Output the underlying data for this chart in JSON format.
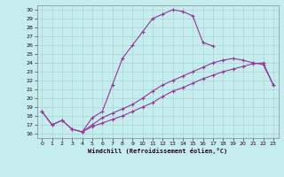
{
  "xlabel": "Windchill (Refroidissement éolien,°C)",
  "xlim": [
    -0.5,
    23.5
  ],
  "ylim": [
    15.5,
    30.5
  ],
  "xticks": [
    0,
    1,
    2,
    3,
    4,
    5,
    6,
    7,
    8,
    9,
    10,
    11,
    12,
    13,
    14,
    15,
    16,
    17,
    18,
    19,
    20,
    21,
    22,
    23
  ],
  "yticks": [
    16,
    17,
    18,
    19,
    20,
    21,
    22,
    23,
    24,
    25,
    26,
    27,
    28,
    29,
    30
  ],
  "bg_color": "#c6eded",
  "line_color": "#993399",
  "grid_color": "#aad4d4",
  "line1_x": [
    0,
    1,
    2,
    3,
    4,
    5,
    6,
    7,
    8,
    9,
    10,
    11,
    12,
    13,
    14,
    15,
    16,
    17
  ],
  "line1_y": [
    18.5,
    17.0,
    17.5,
    16.5,
    16.2,
    17.8,
    18.5,
    21.5,
    24.5,
    26.0,
    27.5,
    29.0,
    29.5,
    30.0,
    29.8,
    29.3,
    26.3,
    25.9
  ],
  "line2_x": [
    0,
    1,
    2,
    3,
    4,
    5,
    6,
    7,
    8,
    9,
    10,
    11,
    12,
    13,
    14,
    15,
    16,
    17,
    18,
    19,
    20,
    21,
    22,
    23
  ],
  "line2_y": [
    18.5,
    17.0,
    17.5,
    16.5,
    16.2,
    17.0,
    17.8,
    18.3,
    18.8,
    19.3,
    20.0,
    20.8,
    21.5,
    22.0,
    22.5,
    23.0,
    23.5,
    24.0,
    24.3,
    24.5,
    24.3,
    24.0,
    23.8,
    21.5
  ],
  "line3_x": [
    4,
    5,
    6,
    7,
    8,
    9,
    10,
    11,
    12,
    13,
    14,
    15,
    16,
    17,
    18,
    19,
    20,
    21,
    22,
    23
  ],
  "line3_y": [
    16.2,
    16.8,
    17.2,
    17.6,
    18.0,
    18.5,
    19.0,
    19.5,
    20.2,
    20.8,
    21.2,
    21.7,
    22.2,
    22.6,
    23.0,
    23.3,
    23.6,
    23.9,
    24.0,
    21.5
  ]
}
